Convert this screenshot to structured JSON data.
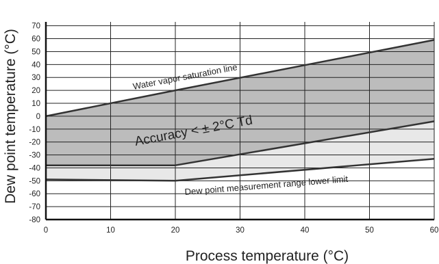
{
  "chart_data": {
    "type": "area",
    "xlabel": "Process temperature (°C)",
    "ylabel": "Dew point temperature (°C)",
    "xlim": [
      0,
      60
    ],
    "ylim": [
      -80,
      73
    ],
    "xticks": [
      0,
      10,
      20,
      30,
      40,
      50,
      60
    ],
    "xtick_labels": [
      "0",
      "10",
      "20",
      "30",
      "40",
      "50",
      "60"
    ],
    "yticks": [
      70,
      60,
      50,
      40,
      30,
      20,
      10,
      0,
      -10,
      -20,
      -30,
      -40,
      -50,
      -60,
      -70,
      -80
    ],
    "ytick_labels": [
      "70",
      "60",
      "50",
      "40",
      "30",
      "20",
      "10",
      "0",
      "-10",
      "-20",
      "-30",
      "-40",
      "-50",
      "-60",
      "-70",
      "-80"
    ],
    "grid": true,
    "series": [
      {
        "key": "saturation",
        "x": [
          0,
          20,
          60
        ],
        "y": [
          0,
          20,
          59
        ]
      },
      {
        "key": "accuracy_limit",
        "x": [
          0,
          20,
          60
        ],
        "y": [
          -38,
          -38,
          -4
        ]
      },
      {
        "key": "lower_limit",
        "x": [
          0,
          20,
          60
        ],
        "y": [
          -49,
          -50,
          -33
        ]
      }
    ],
    "annotations": {
      "saturation_label": "Water vapor saturation line",
      "accuracy_label": "Accuracy < ± 2°C Td",
      "lower_limit_label": "Dew point measurement range lower limit"
    },
    "colors": {
      "dark_region": "#bcbcbc",
      "light_region": "#e8e8e8",
      "line": "#333333",
      "grid": "#222222"
    }
  }
}
